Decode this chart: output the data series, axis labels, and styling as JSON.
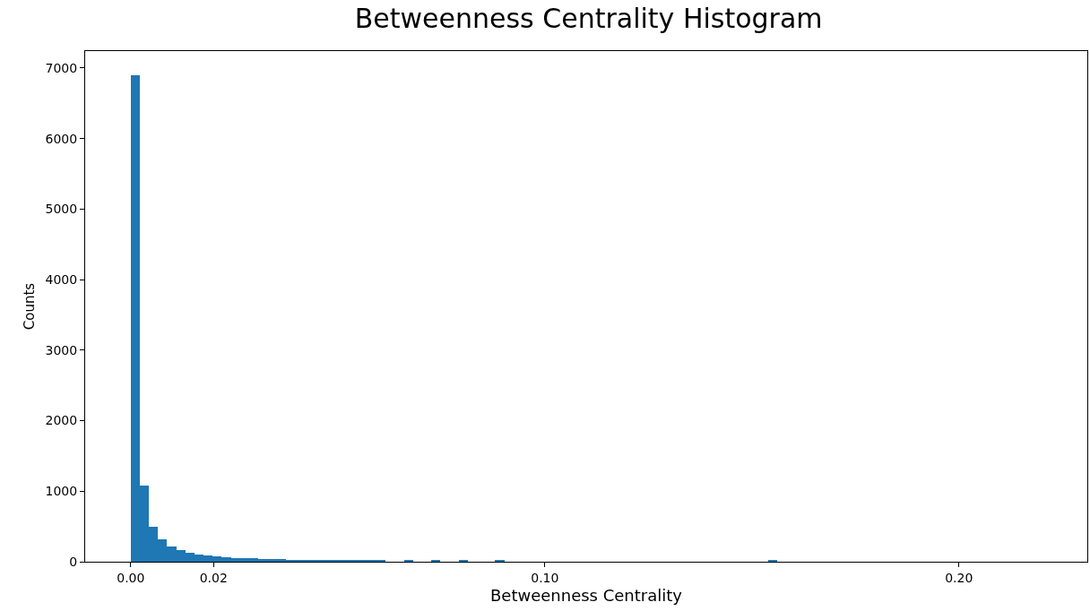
{
  "chart_data": {
    "type": "histogram",
    "title": "Betweenness Centrality Histogram",
    "xlabel": "Betweenness Centrality",
    "ylabel": "Counts",
    "color": "#1f77b4",
    "bins": [
      0,
      0.0022,
      0.0044,
      0.0066,
      0.0088,
      0.011,
      0.0132,
      0.0154,
      0.0176,
      0.0198,
      0.022,
      0.0242,
      0.0264,
      0.0286,
      0.0308,
      0.033,
      0.0352,
      0.0374,
      0.0396,
      0.0418,
      0.044,
      0.0462,
      0.0484,
      0.0506,
      0.0528,
      0.055,
      0.0572,
      0.0594,
      0.0616,
      0.0638,
      0.066,
      0.0682,
      0.0704,
      0.0726,
      0.0748,
      0.077,
      0.0792,
      0.0814,
      0.0836,
      0.0858,
      0.088,
      0.0902,
      0.0924,
      0.0946,
      0.0968,
      0.099,
      0.1012,
      0.1034,
      0.1056,
      0.1078,
      0.11,
      0.1122,
      0.1144,
      0.1166,
      0.1188,
      0.121,
      0.1232,
      0.1254,
      0.1276,
      0.1298,
      0.132,
      0.1342,
      0.1364,
      0.1386,
      0.1408,
      0.143,
      0.1452,
      0.1474,
      0.1496,
      0.1518,
      0.154,
      0.1562,
      0.1584,
      0.1606,
      0.1628,
      0.165,
      0.1672,
      0.1694,
      0.1716,
      0.1738,
      0.176,
      0.1782,
      0.1804,
      0.1826,
      0.1848,
      0.187,
      0.1892,
      0.1914,
      0.1936,
      0.1958,
      0.198,
      0.2002,
      0.2024,
      0.2046,
      0.2068,
      0.209,
      0.2112,
      0.2134,
      0.2156,
      0.2178,
      0.22
    ],
    "values": [
      6900,
      1080,
      500,
      320,
      220,
      170,
      130,
      100,
      90,
      80,
      60,
      50,
      50,
      50,
      40,
      40,
      40,
      30,
      30,
      30,
      30,
      30,
      30,
      30,
      30,
      20,
      20,
      20,
      0,
      0,
      20,
      0,
      0,
      20,
      0,
      0,
      20,
      0,
      0,
      0,
      20,
      0,
      0,
      0,
      0,
      0,
      0,
      0,
      0,
      0,
      0,
      0,
      0,
      0,
      0,
      0,
      0,
      0,
      0,
      0,
      0,
      0,
      0,
      0,
      0,
      0,
      0,
      0,
      0,
      0,
      20,
      0,
      0,
      0,
      0,
      0,
      0,
      0,
      0,
      0,
      0,
      0,
      0,
      0,
      0,
      0,
      0,
      0,
      0,
      0,
      0,
      0,
      0,
      0,
      0,
      0,
      0,
      0,
      0,
      0
    ],
    "xlim": [
      -0.011,
      0.231
    ],
    "xticks": [
      {
        "value": 0,
        "label": "0.00"
      },
      {
        "value": 0.02,
        "label": "0.02"
      },
      {
        "value": 0.1,
        "label": "0.10"
      },
      {
        "value": 0.2,
        "label": "0.20"
      }
    ],
    "ylim": [
      0,
      7240
    ],
    "yticks": [
      0,
      1000,
      2000,
      3000,
      4000,
      5000,
      6000,
      7000
    ]
  }
}
